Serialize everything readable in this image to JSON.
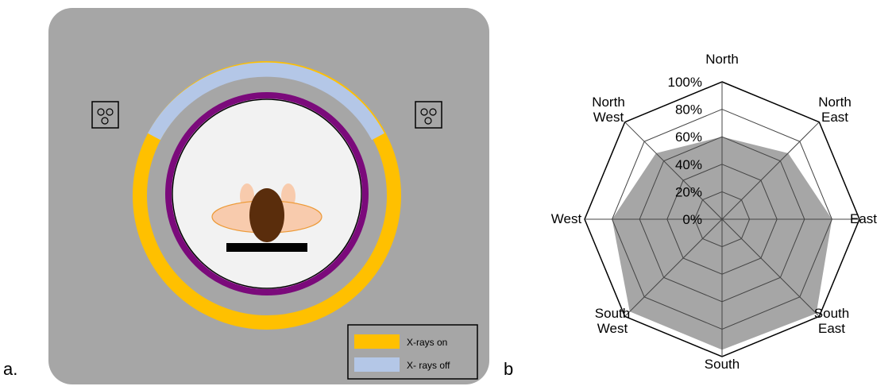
{
  "panels": {
    "a_label": "a.",
    "b_label": "b"
  },
  "legend": {
    "on_label": "X-rays on",
    "off_label": "X- rays off",
    "on_color": "#FFC000",
    "off_color": "#B4C7E7"
  },
  "colors": {
    "background_box": "#A6A6A6",
    "gantry_ring": "#7B0A7B",
    "bore": "#F2F2F2",
    "head": "#5A2D0C",
    "shoulders": "#F8CBAD",
    "couch": "#000000"
  },
  "icons": {
    "detector_left": "dual-circle-sensor-icon",
    "detector_right": "dual-circle-sensor-icon"
  },
  "radar": {
    "directions": [
      {
        "line1": "North",
        "line2": ""
      },
      {
        "line1": "North",
        "line2": "East"
      },
      {
        "line1": "East",
        "line2": ""
      },
      {
        "line1": "South",
        "line2": "East"
      },
      {
        "line1": "South",
        "line2": ""
      },
      {
        "line1": "South",
        "line2": "West"
      },
      {
        "line1": "West",
        "line2": ""
      },
      {
        "line1": "North",
        "line2": "West"
      }
    ],
    "tick_labels": [
      "0%",
      "20%",
      "40%",
      "60%",
      "80%",
      "100%"
    ],
    "values": [
      60,
      68,
      80,
      97,
      95,
      95,
      80,
      68
    ],
    "max": 100,
    "fill_color": "#A6A6A6"
  }
}
